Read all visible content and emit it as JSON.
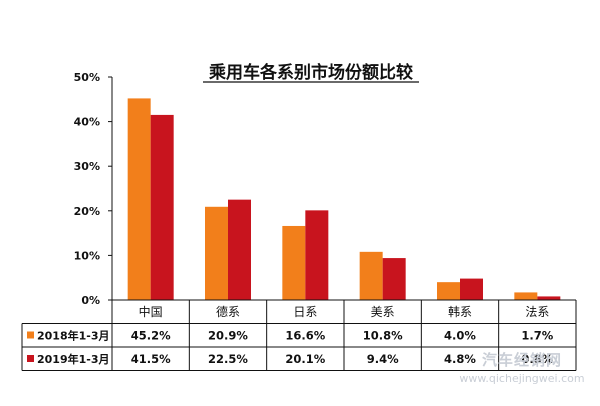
{
  "chart_data": {
    "type": "bar",
    "title": "乘用车各系别市场份额比较",
    "categories": [
      "中国",
      "德系",
      "日系",
      "美系",
      "韩系",
      "法系"
    ],
    "series": [
      {
        "name": "2018年1-3月",
        "color": "#f27f1b",
        "values": [
          45.2,
          20.9,
          16.6,
          10.8,
          4.0,
          1.7
        ],
        "labels": [
          "45.2%",
          "20.9%",
          "16.6%",
          "10.8%",
          "4.0%",
          "1.7%"
        ]
      },
      {
        "name": "2019年1-3月",
        "color": "#c8141e",
        "values": [
          41.5,
          22.5,
          20.1,
          9.4,
          4.8,
          0.8
        ],
        "labels": [
          "41.5%",
          "22.5%",
          "20.1%",
          "9.4%",
          "4.8%",
          "0.8%"
        ]
      }
    ],
    "y_ticks": [
      "0%",
      "10%",
      "20%",
      "30%",
      "40%",
      "50%"
    ],
    "ylim": [
      0,
      50
    ],
    "grid": false,
    "data_table": true
  },
  "watermark": {
    "brand": "汽车经销网",
    "url": "www.qichejingwei.com"
  }
}
